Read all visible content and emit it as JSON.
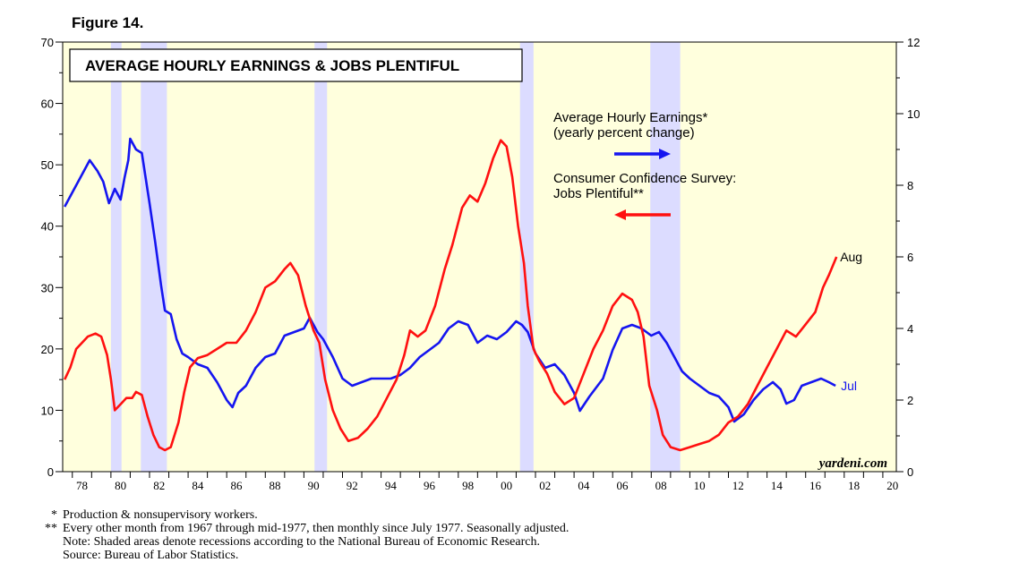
{
  "figure_label": "Figure 14.",
  "footnotes": [
    {
      "mark": "*",
      "text": "Production & nonsupervisory workers."
    },
    {
      "mark": "**",
      "text": "Every other month from 1967 through mid-1977, then monthly since July 1977. Seasonally adjusted."
    },
    {
      "mark": "",
      "text": "Note: Shaded areas denote recessions according to the National Bureau of Economic Research."
    },
    {
      "mark": "",
      "text": "Source: Bureau of Labor Statistics."
    }
  ],
  "chart_data": {
    "type": "line",
    "title": "AVERAGE HOURLY EARNINGS & JOBS PLENTIFUL",
    "watermark": "yardeni.com",
    "x_range": [
      1977.5,
      2020.7
    ],
    "x_ticks": [
      1978,
      1980,
      1982,
      1984,
      1986,
      1988,
      1990,
      1992,
      1994,
      1996,
      1998,
      2000,
      2002,
      2004,
      2006,
      2008,
      2010,
      2012,
      2014,
      2016,
      2018,
      2020
    ],
    "x_tick_labels": [
      "78",
      "80",
      "82",
      "84",
      "86",
      "88",
      "90",
      "92",
      "94",
      "96",
      "98",
      "00",
      "02",
      "04",
      "06",
      "08",
      "10",
      "12",
      "14",
      "16",
      "18",
      "20"
    ],
    "y_left": {
      "range": [
        0,
        70
      ],
      "ticks": [
        0,
        10,
        20,
        30,
        40,
        50,
        60,
        70
      ],
      "series": "Jobs Plentiful"
    },
    "y_right": {
      "range": [
        0,
        12
      ],
      "ticks": [
        0,
        2,
        4,
        6,
        8,
        10,
        12
      ],
      "series": "Average Hourly Earnings"
    },
    "recessions": [
      [
        1980.0,
        1980.55
      ],
      [
        1981.55,
        1982.9
      ],
      [
        1990.55,
        1991.2
      ],
      [
        2001.2,
        2001.9
      ],
      [
        2007.95,
        2009.5
      ]
    ],
    "series": [
      {
        "name": "Average Hourly Earnings (yearly percent change)",
        "axis": "right",
        "color": "#1515f0",
        "end_label": "Jul",
        "points": [
          [
            1977.6,
            7.4
          ],
          [
            1978.0,
            7.8
          ],
          [
            1978.5,
            8.3
          ],
          [
            1978.9,
            8.7
          ],
          [
            1979.3,
            8.4
          ],
          [
            1979.6,
            8.1
          ],
          [
            1979.9,
            7.5
          ],
          [
            1980.2,
            7.9
          ],
          [
            1980.5,
            7.6
          ],
          [
            1980.7,
            8.2
          ],
          [
            1980.9,
            8.7
          ],
          [
            1981.0,
            9.3
          ],
          [
            1981.3,
            9.0
          ],
          [
            1981.6,
            8.9
          ],
          [
            1981.8,
            8.2
          ],
          [
            1982.0,
            7.5
          ],
          [
            1982.3,
            6.4
          ],
          [
            1982.6,
            5.2
          ],
          [
            1982.8,
            4.5
          ],
          [
            1983.1,
            4.4
          ],
          [
            1983.4,
            3.7
          ],
          [
            1983.7,
            3.3
          ],
          [
            1984.0,
            3.2
          ],
          [
            1984.5,
            3.0
          ],
          [
            1985.0,
            2.9
          ],
          [
            1985.5,
            2.5
          ],
          [
            1986.0,
            2.0
          ],
          [
            1986.3,
            1.8
          ],
          [
            1986.6,
            2.2
          ],
          [
            1987.0,
            2.4
          ],
          [
            1987.5,
            2.9
          ],
          [
            1988.0,
            3.2
          ],
          [
            1988.5,
            3.3
          ],
          [
            1989.0,
            3.8
          ],
          [
            1989.5,
            3.9
          ],
          [
            1990.0,
            4.0
          ],
          [
            1990.3,
            4.3
          ],
          [
            1990.7,
            3.9
          ],
          [
            1991.0,
            3.7
          ],
          [
            1991.5,
            3.2
          ],
          [
            1992.0,
            2.6
          ],
          [
            1992.5,
            2.4
          ],
          [
            1993.0,
            2.5
          ],
          [
            1993.5,
            2.6
          ],
          [
            1994.0,
            2.6
          ],
          [
            1994.5,
            2.6
          ],
          [
            1995.0,
            2.7
          ],
          [
            1995.5,
            2.9
          ],
          [
            1996.0,
            3.2
          ],
          [
            1996.5,
            3.4
          ],
          [
            1997.0,
            3.6
          ],
          [
            1997.5,
            4.0
          ],
          [
            1998.0,
            4.2
          ],
          [
            1998.5,
            4.1
          ],
          [
            1999.0,
            3.6
          ],
          [
            1999.5,
            3.8
          ],
          [
            2000.0,
            3.7
          ],
          [
            2000.5,
            3.9
          ],
          [
            2001.0,
            4.2
          ],
          [
            2001.3,
            4.1
          ],
          [
            2001.6,
            3.9
          ],
          [
            2002.0,
            3.3
          ],
          [
            2002.5,
            2.9
          ],
          [
            2003.0,
            3.0
          ],
          [
            2003.5,
            2.7
          ],
          [
            2004.0,
            2.2
          ],
          [
            2004.3,
            1.7
          ],
          [
            2004.8,
            2.1
          ],
          [
            2005.5,
            2.6
          ],
          [
            2006.0,
            3.4
          ],
          [
            2006.5,
            4.0
          ],
          [
            2007.0,
            4.1
          ],
          [
            2007.5,
            4.0
          ],
          [
            2008.0,
            3.8
          ],
          [
            2008.4,
            3.9
          ],
          [
            2008.8,
            3.6
          ],
          [
            2009.2,
            3.2
          ],
          [
            2009.6,
            2.8
          ],
          [
            2010.0,
            2.6
          ],
          [
            2010.5,
            2.4
          ],
          [
            2011.0,
            2.2
          ],
          [
            2011.5,
            2.1
          ],
          [
            2012.0,
            1.8
          ],
          [
            2012.3,
            1.4
          ],
          [
            2012.8,
            1.6
          ],
          [
            2013.3,
            2.0
          ],
          [
            2013.8,
            2.3
          ],
          [
            2014.3,
            2.5
          ],
          [
            2014.7,
            2.3
          ],
          [
            2015.0,
            1.9
          ],
          [
            2015.4,
            2.0
          ],
          [
            2015.8,
            2.4
          ],
          [
            2016.3,
            2.5
          ],
          [
            2016.8,
            2.6
          ],
          [
            2017.2,
            2.5
          ],
          [
            2017.55,
            2.4
          ]
        ]
      },
      {
        "name": "Consumer Confidence Survey: Jobs Plentiful",
        "axis": "left",
        "color": "#ff1010",
        "end_label": "Aug",
        "points": [
          [
            1977.6,
            15
          ],
          [
            1977.9,
            17
          ],
          [
            1978.2,
            20
          ],
          [
            1978.5,
            21
          ],
          [
            1978.8,
            22
          ],
          [
            1979.2,
            22.5
          ],
          [
            1979.5,
            22
          ],
          [
            1979.8,
            19
          ],
          [
            1980.0,
            15
          ],
          [
            1980.2,
            10
          ],
          [
            1980.5,
            11
          ],
          [
            1980.8,
            12
          ],
          [
            1981.1,
            12
          ],
          [
            1981.3,
            13
          ],
          [
            1981.6,
            12.5
          ],
          [
            1981.9,
            9
          ],
          [
            1982.2,
            6
          ],
          [
            1982.5,
            4
          ],
          [
            1982.8,
            3.5
          ],
          [
            1983.1,
            4
          ],
          [
            1983.5,
            8
          ],
          [
            1983.8,
            13
          ],
          [
            1984.1,
            17
          ],
          [
            1984.5,
            18.5
          ],
          [
            1985.0,
            19
          ],
          [
            1985.5,
            20
          ],
          [
            1986.0,
            21
          ],
          [
            1986.5,
            21
          ],
          [
            1987.0,
            23
          ],
          [
            1987.5,
            26
          ],
          [
            1988.0,
            30
          ],
          [
            1988.5,
            31
          ],
          [
            1989.0,
            33
          ],
          [
            1989.3,
            34
          ],
          [
            1989.7,
            32
          ],
          [
            1990.1,
            27
          ],
          [
            1990.5,
            23
          ],
          [
            1990.8,
            21
          ],
          [
            1991.1,
            15
          ],
          [
            1991.5,
            10
          ],
          [
            1991.9,
            7
          ],
          [
            1992.3,
            5
          ],
          [
            1992.8,
            5.5
          ],
          [
            1993.3,
            7
          ],
          [
            1993.8,
            9
          ],
          [
            1994.3,
            12
          ],
          [
            1994.8,
            15
          ],
          [
            1995.2,
            19
          ],
          [
            1995.5,
            23
          ],
          [
            1995.9,
            22
          ],
          [
            1996.3,
            23
          ],
          [
            1996.8,
            27
          ],
          [
            1997.3,
            33
          ],
          [
            1997.7,
            37
          ],
          [
            1998.2,
            43
          ],
          [
            1998.6,
            45
          ],
          [
            1999.0,
            44
          ],
          [
            1999.4,
            47
          ],
          [
            1999.8,
            51
          ],
          [
            2000.2,
            54
          ],
          [
            2000.5,
            53
          ],
          [
            2000.8,
            48
          ],
          [
            2001.1,
            40
          ],
          [
            2001.4,
            34
          ],
          [
            2001.6,
            27
          ],
          [
            2001.9,
            20
          ],
          [
            2002.2,
            18
          ],
          [
            2002.6,
            16
          ],
          [
            2003.0,
            13
          ],
          [
            2003.5,
            11
          ],
          [
            2004.0,
            12
          ],
          [
            2004.5,
            16
          ],
          [
            2005.0,
            20
          ],
          [
            2005.5,
            23
          ],
          [
            2006.0,
            27
          ],
          [
            2006.5,
            29
          ],
          [
            2007.0,
            28
          ],
          [
            2007.3,
            26
          ],
          [
            2007.6,
            22
          ],
          [
            2007.9,
            14
          ],
          [
            2008.3,
            10
          ],
          [
            2008.6,
            6
          ],
          [
            2009.0,
            4
          ],
          [
            2009.5,
            3.5
          ],
          [
            2010.0,
            4
          ],
          [
            2010.5,
            4.5
          ],
          [
            2011.0,
            5
          ],
          [
            2011.5,
            6
          ],
          [
            2012.0,
            8
          ],
          [
            2012.5,
            9
          ],
          [
            2013.0,
            11
          ],
          [
            2013.5,
            14
          ],
          [
            2014.0,
            17
          ],
          [
            2014.5,
            20
          ],
          [
            2015.0,
            23
          ],
          [
            2015.5,
            22
          ],
          [
            2016.0,
            24
          ],
          [
            2016.5,
            26
          ],
          [
            2016.9,
            30
          ],
          [
            2017.2,
            32
          ],
          [
            2017.6,
            35
          ]
        ]
      }
    ],
    "legend": [
      {
        "line1": "Average Hourly Earnings*",
        "line2": "(yearly percent change)",
        "color": "#1515f0",
        "arrow": "right"
      },
      {
        "line1": "Consumer Confidence Survey:",
        "line2": "Jobs Plentiful**",
        "color": "#ff1010",
        "arrow": "left"
      }
    ]
  }
}
